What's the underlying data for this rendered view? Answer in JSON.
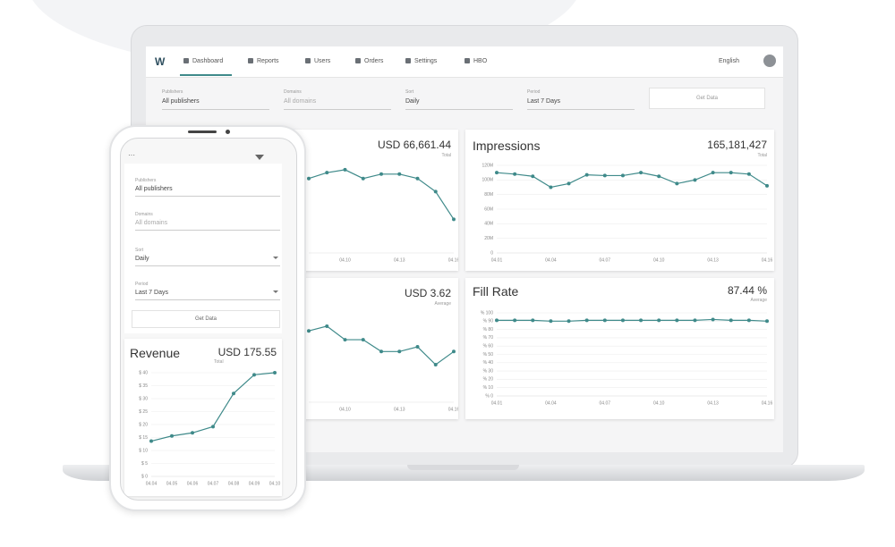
{
  "nav": {
    "items": [
      "Dashboard",
      "Reports",
      "Users",
      "Orders",
      "Settings",
      "HBO"
    ],
    "language": "English"
  },
  "filters": [
    {
      "label": "Publishers",
      "value": "All publishers"
    },
    {
      "label": "Domains",
      "value": "All domains"
    },
    {
      "label": "Sort",
      "value": "Daily"
    },
    {
      "label": "Period",
      "value": "Last 7 Days"
    }
  ],
  "get_data": "Get Data",
  "cards": [
    {
      "value": "USD 66,661.44",
      "caption": "Total",
      "chart": {
        "type": "line",
        "color": "#3f8a8a",
        "categories": [
          null,
          null,
          "04.10",
          null,
          null,
          "04.13",
          null,
          null,
          "04.16"
        ],
        "values": [
          5100,
          5500,
          5700,
          5100,
          5400,
          5400,
          5100,
          4200,
          2300
        ],
        "ylim": [
          0,
          6000
        ],
        "yticks": []
      }
    },
    {
      "title": "Impressions",
      "value": "165,181,427",
      "caption": "Total",
      "chart": {
        "type": "line",
        "color": "#3f8a8a",
        "categories": [
          "04.01",
          null,
          null,
          "04.04",
          null,
          null,
          "04.07",
          null,
          null,
          "04.10",
          null,
          null,
          "04.13",
          null,
          null,
          "04.16"
        ],
        "values": [
          110,
          108,
          105,
          90,
          95,
          107,
          106,
          106,
          110,
          105,
          95,
          100,
          110,
          110,
          108,
          92
        ],
        "ylim": [
          0,
          120
        ],
        "yticks": [
          0,
          {
            "value": 20,
            "label": "20M"
          },
          {
            "value": 40,
            "label": "40M"
          },
          {
            "value": 60,
            "label": "60M"
          },
          {
            "value": 80,
            "label": "80M"
          },
          {
            "value": 100,
            "label": "100M"
          },
          {
            "value": 120,
            "label": "120M"
          }
        ]
      }
    },
    {
      "value": "USD 3.62",
      "caption": "Average",
      "chart": {
        "type": "line",
        "color": "#3f8a8a",
        "categories": [
          null,
          null,
          "04.10",
          null,
          null,
          "04.13",
          null,
          null,
          "04.16"
        ],
        "values": [
          3.8,
          4.05,
          3.33,
          3.33,
          2.7,
          2.7,
          2.95,
          2.0,
          2.7
        ],
        "ylim": [
          0,
          5
        ],
        "yticks": []
      }
    },
    {
      "title": "Fill Rate",
      "value": "87.44 %",
      "caption": "Average",
      "chart": {
        "type": "line",
        "color": "#3f8a8a",
        "categories": [
          "04.01",
          null,
          null,
          "04.04",
          null,
          null,
          "04.07",
          null,
          null,
          "04.10",
          null,
          null,
          "04.13",
          null,
          null,
          "04.16"
        ],
        "values": [
          91,
          91,
          91,
          90,
          90,
          91,
          91,
          91,
          91,
          91,
          91,
          91,
          92,
          91,
          91,
          90
        ],
        "ylim": [
          0,
          100
        ],
        "yticks": [
          {
            "value": 0,
            "label": "% 0"
          },
          {
            "value": 10,
            "label": "% 10"
          },
          {
            "value": 20,
            "label": "% 20"
          },
          {
            "value": 30,
            "label": "% 30"
          },
          {
            "value": 40,
            "label": "% 40"
          },
          {
            "value": 50,
            "label": "% 50"
          },
          {
            "value": 60,
            "label": "% 60"
          },
          {
            "value": 70,
            "label": "% 70"
          },
          {
            "value": 80,
            "label": "% 80"
          },
          {
            "value": 90,
            "label": "% 90"
          },
          {
            "value": 100,
            "label": "% 100"
          }
        ]
      }
    }
  ],
  "phone": {
    "filters": [
      {
        "label": "Publishers",
        "value": "All publishers"
      },
      {
        "label": "Domains",
        "value": "All domains"
      },
      {
        "label": "Sort",
        "value": "Daily"
      },
      {
        "label": "Period",
        "value": "Last 7 Days"
      }
    ],
    "get_data": "Get Data",
    "card": {
      "title": "Revenue",
      "value": "USD 175.55",
      "caption": "Total",
      "chart": {
        "type": "line",
        "color": "#3f8a8a",
        "categories": [
          "04.04",
          "04.05",
          "04.06",
          "04.07",
          "04.08",
          "04.09",
          "04.10"
        ],
        "values": [
          13.6,
          15.6,
          16.8,
          19.2,
          32,
          39.2,
          40
        ],
        "ylim": [
          0,
          40
        ],
        "yticks": [
          {
            "value": 0,
            "label": "$ 0"
          },
          {
            "value": 5,
            "label": "$ 5"
          },
          {
            "value": 10,
            "label": "$ 10"
          },
          {
            "value": 15,
            "label": "$ 15"
          },
          {
            "value": 20,
            "label": "$ 20"
          },
          {
            "value": 25,
            "label": "$ 25"
          },
          {
            "value": 30,
            "label": "$ 30"
          },
          {
            "value": 35,
            "label": "$ 35"
          },
          {
            "value": 40,
            "label": "$ 40"
          }
        ]
      }
    }
  }
}
